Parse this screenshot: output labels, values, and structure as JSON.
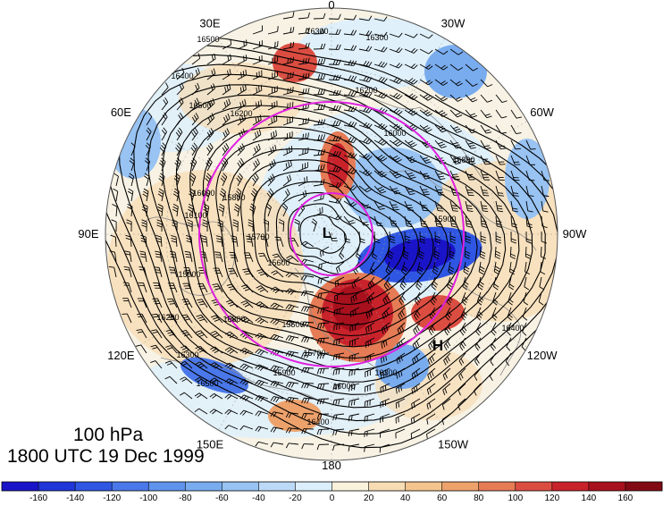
{
  "map": {
    "level": "100 hPa",
    "valid_time": "1800 UTC 19 Dec 1999",
    "longitude_labels": [
      "0",
      "30W",
      "60W",
      "90W",
      "120W",
      "150W",
      "180",
      "150E",
      "120E",
      "90E",
      "60E",
      "30E"
    ],
    "pressure_centers": [
      {
        "label": "L",
        "type": "low"
      },
      {
        "label": "H",
        "type": "high"
      }
    ],
    "height_contour_labels": [
      "15500",
      "15600",
      "15700",
      "15800",
      "15900",
      "16000",
      "16100",
      "16200",
      "16300",
      "16400",
      "16500"
    ],
    "colors": {
      "ring_circles": "#e020e0",
      "negative_strong": "#1a2bd8",
      "positive_strong": "#8b0a14",
      "neutral": "#ffffff",
      "land_outline": "#8a8a8a"
    }
  },
  "colorbar": {
    "tick_labels": [
      "-160",
      "-140",
      "-120",
      "-100",
      "-80",
      "-60",
      "-40",
      "-20",
      "0",
      "20",
      "40",
      "60",
      "80",
      "100",
      "120",
      "140",
      "160"
    ],
    "colors": [
      "#1a14c8",
      "#2136d9",
      "#2f56e3",
      "#4a78ea",
      "#5f93ec",
      "#79acef",
      "#98c3f3",
      "#bcdaf8",
      "#dceffc",
      "#fbf2dc",
      "#f7dcb4",
      "#f3c48d",
      "#eda26c",
      "#e67c56",
      "#dc4d41",
      "#c8222b",
      "#a8101d",
      "#820a14"
    ]
  }
}
